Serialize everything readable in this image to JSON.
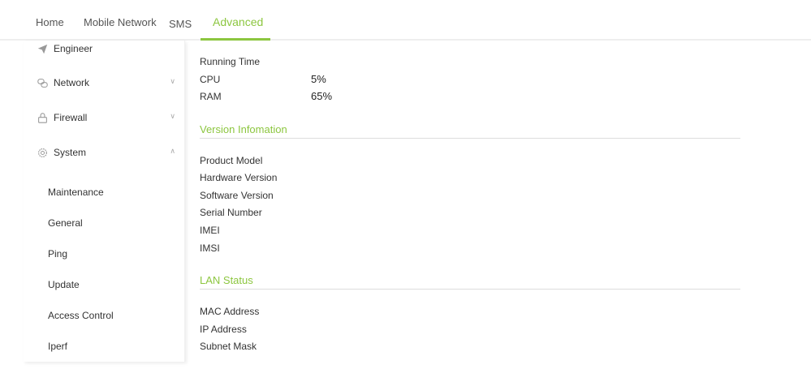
{
  "nav": {
    "tabs": [
      {
        "label": "Home"
      },
      {
        "label": "Mobile Network"
      },
      {
        "label": "SMS"
      },
      {
        "label": "Advanced",
        "active": true
      }
    ]
  },
  "sidebar": {
    "items": [
      {
        "label": "Engineer",
        "icon": "paper-plane-icon"
      },
      {
        "label": "Network",
        "icon": "network-icon",
        "expanded": false
      },
      {
        "label": "Firewall",
        "icon": "lock-icon",
        "expanded": false
      },
      {
        "label": "System",
        "icon": "gear-icon",
        "expanded": true
      }
    ],
    "sub_items": [
      "Maintenance",
      "General",
      "Ping",
      "Update",
      "Access Control",
      "Iperf"
    ]
  },
  "status": {
    "running_time_label": "Running Time",
    "cpu_label": "CPU",
    "cpu_value": "5%",
    "ram_label": "RAM",
    "ram_value": "65%"
  },
  "version": {
    "title": "Version Infomation",
    "rows": [
      "Product Model",
      "Hardware Version",
      "Software Version",
      "Serial Number",
      "IMEI",
      "IMSI"
    ]
  },
  "lan": {
    "title": "LAN Status",
    "rows": [
      "MAC Address",
      "IP Address",
      "Subnet Mask"
    ]
  },
  "colors": {
    "accent": "#8cc63f"
  }
}
